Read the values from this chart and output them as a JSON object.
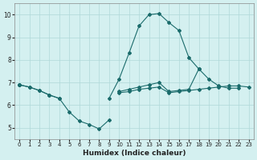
{
  "xlabel": "Humidex (Indice chaleur)",
  "x_values": [
    0,
    1,
    2,
    3,
    4,
    5,
    6,
    7,
    8,
    9,
    10,
    11,
    12,
    13,
    14,
    15,
    16,
    17,
    18,
    19,
    20,
    21,
    22,
    23
  ],
  "line1": [
    6.9,
    6.8,
    6.65,
    6.45,
    6.3,
    5.7,
    5.3,
    5.15,
    4.95,
    5.35,
    null,
    null,
    null,
    null,
    null,
    null,
    null,
    null,
    null,
    null,
    null,
    null,
    null,
    null
  ],
  "line2": [
    6.9,
    6.8,
    6.65,
    6.45,
    6.3,
    null,
    null,
    null,
    null,
    6.3,
    7.15,
    8.3,
    9.5,
    10.0,
    10.05,
    9.65,
    9.3,
    8.1,
    7.6,
    null,
    null,
    null,
    null,
    null
  ],
  "line3": [
    6.9,
    null,
    null,
    null,
    null,
    null,
    null,
    null,
    null,
    null,
    6.6,
    6.7,
    6.8,
    6.9,
    7.0,
    6.6,
    6.65,
    6.7,
    7.6,
    7.15,
    6.85,
    6.75,
    6.75,
    null
  ],
  "line4": [
    6.9,
    null,
    null,
    null,
    null,
    null,
    null,
    null,
    null,
    null,
    6.55,
    6.6,
    6.7,
    6.75,
    6.8,
    6.55,
    6.6,
    6.65,
    6.7,
    6.75,
    6.8,
    6.85,
    6.85,
    6.8
  ],
  "color": "#1a6b6b",
  "bg_color": "#d4f0f0",
  "grid_color": "#b0d8d8",
  "ylim": [
    4.5,
    10.5
  ],
  "xlim": [
    -0.5,
    23.5
  ],
  "yticks": [
    5,
    6,
    7,
    8,
    9,
    10
  ],
  "xticks": [
    0,
    1,
    2,
    3,
    4,
    5,
    6,
    7,
    8,
    9,
    10,
    11,
    12,
    13,
    14,
    15,
    16,
    17,
    18,
    19,
    20,
    21,
    22,
    23
  ]
}
